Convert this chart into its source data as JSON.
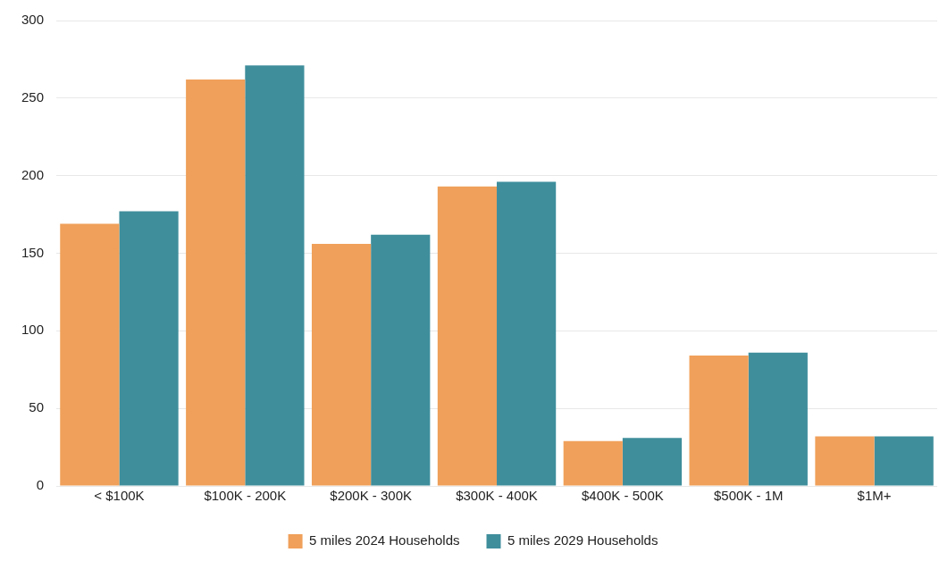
{
  "chart_data": {
    "type": "bar",
    "categories": [
      "< $100K",
      "$100K - 200K",
      "$200K - 300K",
      "$300K - 400K",
      "$400K - 500K",
      "$500K - 1M",
      "$1M+"
    ],
    "series": [
      {
        "name": "5 miles 2024 Households",
        "color": "#f0a05a",
        "values": [
          169,
          262,
          156,
          193,
          29,
          84,
          32
        ]
      },
      {
        "name": "5 miles 2029 Households",
        "color": "#3f8e9c",
        "values": [
          177,
          271,
          162,
          196,
          31,
          86,
          32
        ]
      }
    ],
    "ylim": [
      0,
      300
    ],
    "yticks": [
      0,
      50,
      100,
      150,
      200,
      250,
      300
    ],
    "grid": "y",
    "legend": "bottom"
  }
}
